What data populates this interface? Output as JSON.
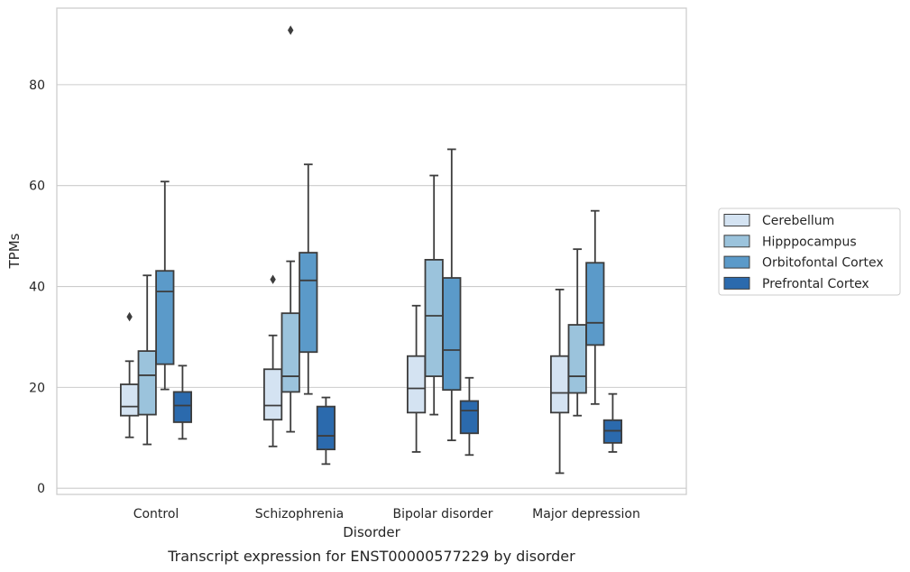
{
  "chart_data": {
    "type": "box",
    "title": "",
    "caption": "Transcript expression for ENST00000577229 by disorder",
    "xlabel": "Disorder",
    "ylabel": "TPMs",
    "ylim": [
      -1,
      95.5
    ],
    "yticks": [
      0,
      20,
      40,
      60,
      80
    ],
    "grid": "horizontal",
    "legend_position": "right",
    "categories": [
      "Control",
      "Schizophrenia",
      "Bipolar disorder",
      "Major depression"
    ],
    "series": [
      {
        "name": "Cerebellum",
        "color": "#d4e3f2",
        "boxes": [
          {
            "whisker_low": 10.1,
            "q1": 14.4,
            "median": 16.2,
            "q3": 20.6,
            "whisker_high": 25.2,
            "outliers": [
              34.0
            ]
          },
          {
            "whisker_low": 8.3,
            "q1": 13.6,
            "median": 16.4,
            "q3": 23.6,
            "whisker_high": 30.3,
            "outliers": [
              41.4
            ]
          },
          {
            "whisker_low": 7.2,
            "q1": 15.0,
            "median": 19.8,
            "q3": 26.2,
            "whisker_high": 36.2,
            "outliers": []
          },
          {
            "whisker_low": 3.0,
            "q1": 15.0,
            "median": 18.9,
            "q3": 26.2,
            "whisker_high": 39.4,
            "outliers": []
          }
        ]
      },
      {
        "name": "Hipppocampus",
        "color": "#9bc3dc",
        "boxes": [
          {
            "whisker_low": 8.7,
            "q1": 14.6,
            "median": 22.4,
            "q3": 27.2,
            "whisker_high": 42.2,
            "outliers": []
          },
          {
            "whisker_low": 11.2,
            "q1": 19.1,
            "median": 22.2,
            "q3": 34.7,
            "whisker_high": 45.0,
            "outliers": [
              90.8
            ]
          },
          {
            "whisker_low": 14.6,
            "q1": 22.2,
            "median": 34.2,
            "q3": 45.3,
            "whisker_high": 62.0,
            "outliers": []
          },
          {
            "whisker_low": 14.4,
            "q1": 18.9,
            "median": 22.2,
            "q3": 32.4,
            "whisker_high": 47.4,
            "outliers": []
          }
        ]
      },
      {
        "name": "Orbitofontal Cortex",
        "color": "#5b9ac9",
        "boxes": [
          {
            "whisker_low": 19.6,
            "q1": 24.6,
            "median": 39.0,
            "q3": 43.1,
            "whisker_high": 60.8,
            "outliers": []
          },
          {
            "whisker_low": 18.7,
            "q1": 27.0,
            "median": 41.2,
            "q3": 46.7,
            "whisker_high": 64.2,
            "outliers": []
          },
          {
            "whisker_low": 9.5,
            "q1": 19.5,
            "median": 27.4,
            "q3": 41.7,
            "whisker_high": 67.2,
            "outliers": []
          },
          {
            "whisker_low": 16.7,
            "q1": 28.4,
            "median": 32.8,
            "q3": 44.7,
            "whisker_high": 55.0,
            "outliers": []
          }
        ]
      },
      {
        "name": "Prefrontal Cortex",
        "color": "#2b6aad",
        "boxes": [
          {
            "whisker_low": 9.8,
            "q1": 13.1,
            "median": 16.4,
            "q3": 19.1,
            "whisker_high": 24.3,
            "outliers": []
          },
          {
            "whisker_low": 4.8,
            "q1": 7.7,
            "median": 10.4,
            "q3": 16.2,
            "whisker_high": 18.0,
            "outliers": []
          },
          {
            "whisker_low": 6.6,
            "q1": 10.9,
            "median": 15.4,
            "q3": 17.3,
            "whisker_high": 21.9,
            "outliers": []
          },
          {
            "whisker_low": 7.2,
            "q1": 9.0,
            "median": 11.4,
            "q3": 13.5,
            "whisker_high": 18.7,
            "outliers": []
          }
        ]
      }
    ]
  }
}
